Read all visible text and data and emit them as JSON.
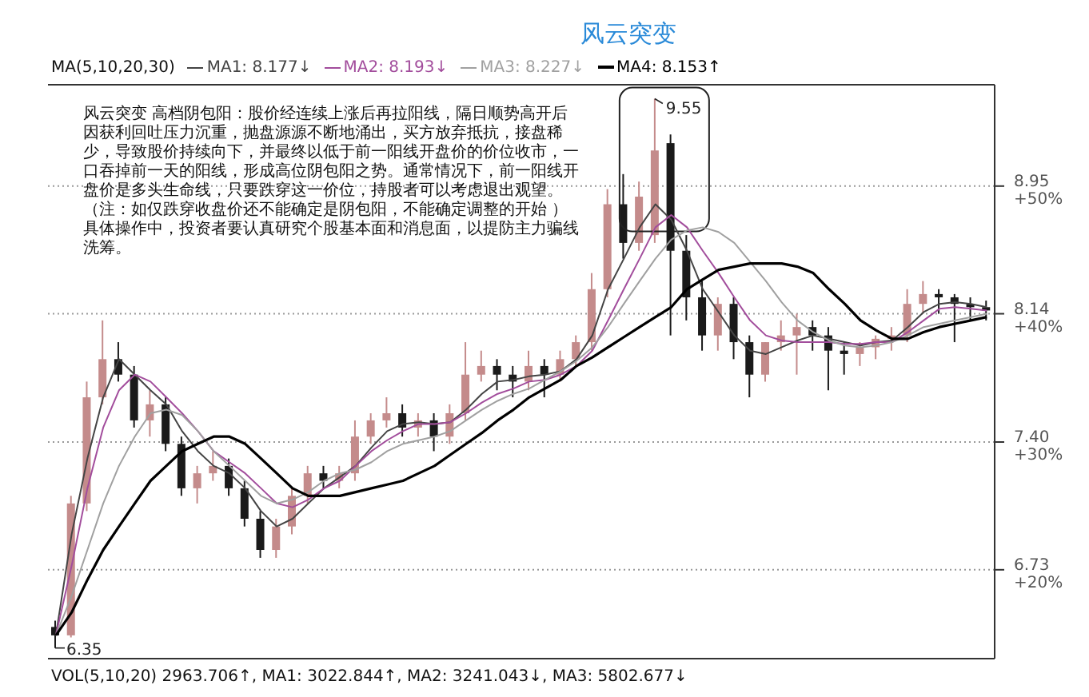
{
  "chart_data": {
    "type": "candlestick",
    "title": "风云突变",
    "categories": [
      null,
      null,
      null,
      null,
      null,
      null,
      null,
      null,
      null,
      null,
      null,
      null,
      null,
      null,
      null,
      null,
      null,
      null,
      null,
      null,
      null,
      null,
      null,
      null,
      null,
      null,
      null,
      null,
      null,
      null,
      null,
      null,
      null,
      null,
      null,
      null,
      null,
      null,
      null,
      null,
      null,
      null,
      null,
      null,
      null,
      null,
      null,
      null,
      null,
      null,
      null,
      null,
      null,
      null,
      null,
      null,
      null,
      null,
      null,
      null
    ],
    "ohlc": [
      [
        6.45,
        6.48,
        6.35,
        6.41
      ],
      [
        6.41,
        7.11,
        6.4,
        7.07
      ],
      [
        7.07,
        7.74,
        7.03,
        7.65
      ],
      [
        7.65,
        8.1,
        7.61,
        7.87
      ],
      [
        7.87,
        7.97,
        7.74,
        7.78
      ],
      [
        7.78,
        7.83,
        7.48,
        7.52
      ],
      [
        7.52,
        7.69,
        7.43,
        7.61
      ],
      [
        7.61,
        7.65,
        7.35,
        7.39
      ],
      [
        7.39,
        7.43,
        7.11,
        7.15
      ],
      [
        7.15,
        7.27,
        7.07,
        7.23
      ],
      [
        7.23,
        7.35,
        7.19,
        7.27
      ],
      [
        7.27,
        7.31,
        7.11,
        7.15
      ],
      [
        7.15,
        7.19,
        6.95,
        6.99
      ],
      [
        6.99,
        7.03,
        6.79,
        6.83
      ],
      [
        6.83,
        6.99,
        6.79,
        6.95
      ],
      [
        6.95,
        7.15,
        6.91,
        7.11
      ],
      [
        7.11,
        7.27,
        7.07,
        7.23
      ],
      [
        7.23,
        7.27,
        7.15,
        7.19
      ],
      [
        7.19,
        7.27,
        7.15,
        7.23
      ],
      [
        7.23,
        7.52,
        7.19,
        7.43
      ],
      [
        7.43,
        7.56,
        7.39,
        7.52
      ],
      [
        7.52,
        7.65,
        7.48,
        7.56
      ],
      [
        7.56,
        7.61,
        7.43,
        7.48
      ],
      [
        7.48,
        7.56,
        7.43,
        7.52
      ],
      [
        7.52,
        7.56,
        7.35,
        7.43
      ],
      [
        7.43,
        7.61,
        7.39,
        7.56
      ],
      [
        7.56,
        7.97,
        7.52,
        7.78
      ],
      [
        7.78,
        7.92,
        7.74,
        7.83
      ],
      [
        7.83,
        7.87,
        7.69,
        7.78
      ],
      [
        7.78,
        7.83,
        7.65,
        7.74
      ],
      [
        7.74,
        7.92,
        7.69,
        7.83
      ],
      [
        7.83,
        7.87,
        7.65,
        7.78
      ],
      [
        7.78,
        7.92,
        7.74,
        7.87
      ],
      [
        7.87,
        8.01,
        7.83,
        7.97
      ],
      [
        7.97,
        8.39,
        7.92,
        8.29
      ],
      [
        8.29,
        8.93,
        8.24,
        8.83
      ],
      [
        8.83,
        9.03,
        8.48,
        8.58
      ],
      [
        8.58,
        8.98,
        8.53,
        8.88
      ],
      [
        8.63,
        9.55,
        8.58,
        9.19
      ],
      [
        9.24,
        9.3,
        8.01,
        8.53
      ],
      [
        8.53,
        8.63,
        8.1,
        8.24
      ],
      [
        8.24,
        8.34,
        7.92,
        8.01
      ],
      [
        8.01,
        8.24,
        7.92,
        8.2
      ],
      [
        8.2,
        8.24,
        7.87,
        7.97
      ],
      [
        7.97,
        8.01,
        7.65,
        7.78
      ],
      [
        7.78,
        7.97,
        7.74,
        7.97
      ],
      [
        7.97,
        8.1,
        7.92,
        8.01
      ],
      [
        8.01,
        8.14,
        7.78,
        8.06
      ],
      [
        8.06,
        8.1,
        7.92,
        8.01
      ],
      [
        8.01,
        8.06,
        7.69,
        7.92
      ],
      [
        7.92,
        7.97,
        7.78,
        7.9
      ],
      [
        7.9,
        7.97,
        7.83,
        7.94
      ],
      [
        7.94,
        8.01,
        7.87,
        7.99
      ],
      [
        7.99,
        8.06,
        7.92,
        8.01
      ],
      [
        8.01,
        8.29,
        7.97,
        8.2
      ],
      [
        8.2,
        8.34,
        8.14,
        8.26
      ],
      [
        8.26,
        8.29,
        8.14,
        8.24
      ],
      [
        8.24,
        8.26,
        7.97,
        8.2
      ],
      [
        8.2,
        8.24,
        8.1,
        8.18
      ],
      [
        8.18,
        8.22,
        8.1,
        8.16
      ]
    ],
    "colors": [
      "#1a1a1a",
      "#c48b8b",
      "#c48b8b",
      "#c48b8b",
      "#1a1a1a",
      "#1a1a1a",
      "#c48b8b",
      "#1a1a1a",
      "#1a1a1a",
      "#c48b8b",
      "#c48b8b",
      "#1a1a1a",
      "#1a1a1a",
      "#1a1a1a",
      "#c48b8b",
      "#c48b8b",
      "#c48b8b",
      "#1a1a1a",
      "#c48b8b",
      "#c48b8b",
      "#c48b8b",
      "#c48b8b",
      "#1a1a1a",
      "#c48b8b",
      "#1a1a1a",
      "#c48b8b",
      "#c48b8b",
      "#c48b8b",
      "#1a1a1a",
      "#1a1a1a",
      "#c48b8b",
      "#1a1a1a",
      "#c48b8b",
      "#c48b8b",
      "#c48b8b",
      "#c48b8b",
      "#1a1a1a",
      "#c48b8b",
      "#c48b8b",
      "#1a1a1a",
      "#1a1a1a",
      "#1a1a1a",
      "#c48b8b",
      "#1a1a1a",
      "#1a1a1a",
      "#c48b8b",
      "#c48b8b",
      "#c48b8b",
      "#1a1a1a",
      "#1a1a1a",
      "#1a1a1a",
      "#c48b8b",
      "#c48b8b",
      "#c48b8b",
      "#c48b8b",
      "#c48b8b",
      "#1a1a1a",
      "#1a1a1a",
      "#1a1a1a",
      "#1a1a1a"
    ],
    "series": [
      {
        "name": "MA1: 8.177↓",
        "type": "line",
        "color": "#444444",
        "values": [
          6.41,
          6.91,
          7.31,
          7.65,
          7.87,
          7.78,
          7.69,
          7.61,
          7.46,
          7.35,
          7.27,
          7.23,
          7.15,
          7.03,
          6.95,
          6.99,
          7.07,
          7.15,
          7.21,
          7.27,
          7.37,
          7.46,
          7.5,
          7.51,
          7.5,
          7.51,
          7.58,
          7.67,
          7.74,
          7.75,
          7.77,
          7.78,
          7.8,
          7.87,
          8.01,
          8.29,
          8.48,
          8.68,
          8.83,
          8.73,
          8.53,
          8.29,
          8.15,
          8.01,
          7.92,
          7.9,
          7.94,
          7.98,
          8.01,
          7.99,
          7.97,
          7.95,
          7.97,
          7.98,
          8.06,
          8.15,
          8.2,
          8.21,
          8.2,
          8.18
        ]
      },
      {
        "name": "MA2: 8.193↓",
        "type": "line",
        "color": "#a24d9c",
        "values": [
          6.41,
          6.75,
          7.15,
          7.48,
          7.69,
          7.78,
          7.74,
          7.65,
          7.56,
          7.46,
          7.35,
          7.29,
          7.23,
          7.15,
          7.07,
          7.05,
          7.09,
          7.15,
          7.19,
          7.27,
          7.35,
          7.41,
          7.46,
          7.5,
          7.5,
          7.51,
          7.56,
          7.62,
          7.67,
          7.7,
          7.74,
          7.75,
          7.78,
          7.83,
          7.92,
          8.1,
          8.29,
          8.48,
          8.68,
          8.76,
          8.68,
          8.53,
          8.39,
          8.24,
          8.1,
          8.01,
          7.98,
          7.97,
          7.97,
          7.97,
          7.96,
          7.96,
          7.97,
          7.97,
          8.03,
          8.1,
          8.17,
          8.18,
          8.17,
          8.16
        ]
      },
      {
        "name": "MA3: 8.227↓",
        "type": "line",
        "color": "#a0a0a0",
        "values": [
          6.41,
          6.6,
          6.83,
          7.07,
          7.27,
          7.43,
          7.56,
          7.58,
          7.55,
          7.46,
          7.35,
          7.27,
          7.19,
          7.11,
          7.07,
          7.09,
          7.13,
          7.19,
          7.23,
          7.25,
          7.29,
          7.35,
          7.39,
          7.41,
          7.43,
          7.46,
          7.52,
          7.58,
          7.63,
          7.67,
          7.7,
          7.75,
          7.8,
          7.86,
          7.94,
          8.06,
          8.2,
          8.34,
          8.48,
          8.6,
          8.66,
          8.68,
          8.65,
          8.58,
          8.46,
          8.34,
          8.21,
          8.1,
          8.03,
          7.98,
          7.95,
          7.94,
          7.95,
          7.97,
          8.01,
          8.06,
          8.08,
          8.1,
          8.12,
          8.14
        ]
      },
      {
        "name": "MA4: 8.153↑",
        "type": "line",
        "color": "#000000",
        "values": [
          6.41,
          6.52,
          6.68,
          6.83,
          6.95,
          7.07,
          7.19,
          7.27,
          7.35,
          7.39,
          7.43,
          7.43,
          7.39,
          7.31,
          7.23,
          7.15,
          7.11,
          7.11,
          7.11,
          7.13,
          7.15,
          7.17,
          7.19,
          7.23,
          7.27,
          7.33,
          7.39,
          7.45,
          7.52,
          7.58,
          7.65,
          7.7,
          7.75,
          7.83,
          7.88,
          7.94,
          8.0,
          8.06,
          8.12,
          8.18,
          8.29,
          8.35,
          8.41,
          8.43,
          8.45,
          8.45,
          8.45,
          8.43,
          8.39,
          8.29,
          8.2,
          8.1,
          8.04,
          7.99,
          7.99,
          8.03,
          8.06,
          8.08,
          8.1,
          8.12
        ]
      }
    ],
    "log": true,
    "ylim": [
      6.3,
      9.65
    ],
    "yticks": [
      6.73,
      {
        "value": 7.4,
        "label": "7.40"
      },
      8.14,
      8.95
    ],
    "y2lim": [
      13.05,
      57.94
    ],
    "y2ticks": [
      {
        "value": 20,
        "label": "+20%"
      },
      {
        "value": 30,
        "label": "+30%"
      },
      {
        "value": 40,
        "label": "+40%"
      },
      {
        "value": 50,
        "label": "+50%"
      }
    ],
    "tick_labels": "y",
    "grid": "y",
    "legend": "top left",
    "marker": "none",
    "annotations": [
      "MA(5,10,20,30)",
      "风云突变 高档阴包阳：股价经连续上涨后再拉阳线，隔日顺势高开后因获利回吐压力沉重，抛盘源源不断地涌出，买方放弃抵抗，接盘稀少，导致股价持续向下，并最终以低于前一阳线开盘价的价位收市，一口吞掉前一天的阳线，形成高位阴包阳之势。通常情况下，前一阳线开盘价是多头生命线，只要跌穿这一价位，持股者可以考虑退出观望。（注：如仅跌穿收盘价还不能确定是阴包阳，不能确定调整的开始 ）具体操作中，投资者要认真研究个股基本面和消息面，以提防主力骗线洗筹。",
      "VOL(5,10,20)  2963.706↑, MA1: 3022.844↑, MA2: 3241.043↓, MA3: 5802.677↓",
      "9.55",
      "6.35"
    ]
  }
}
